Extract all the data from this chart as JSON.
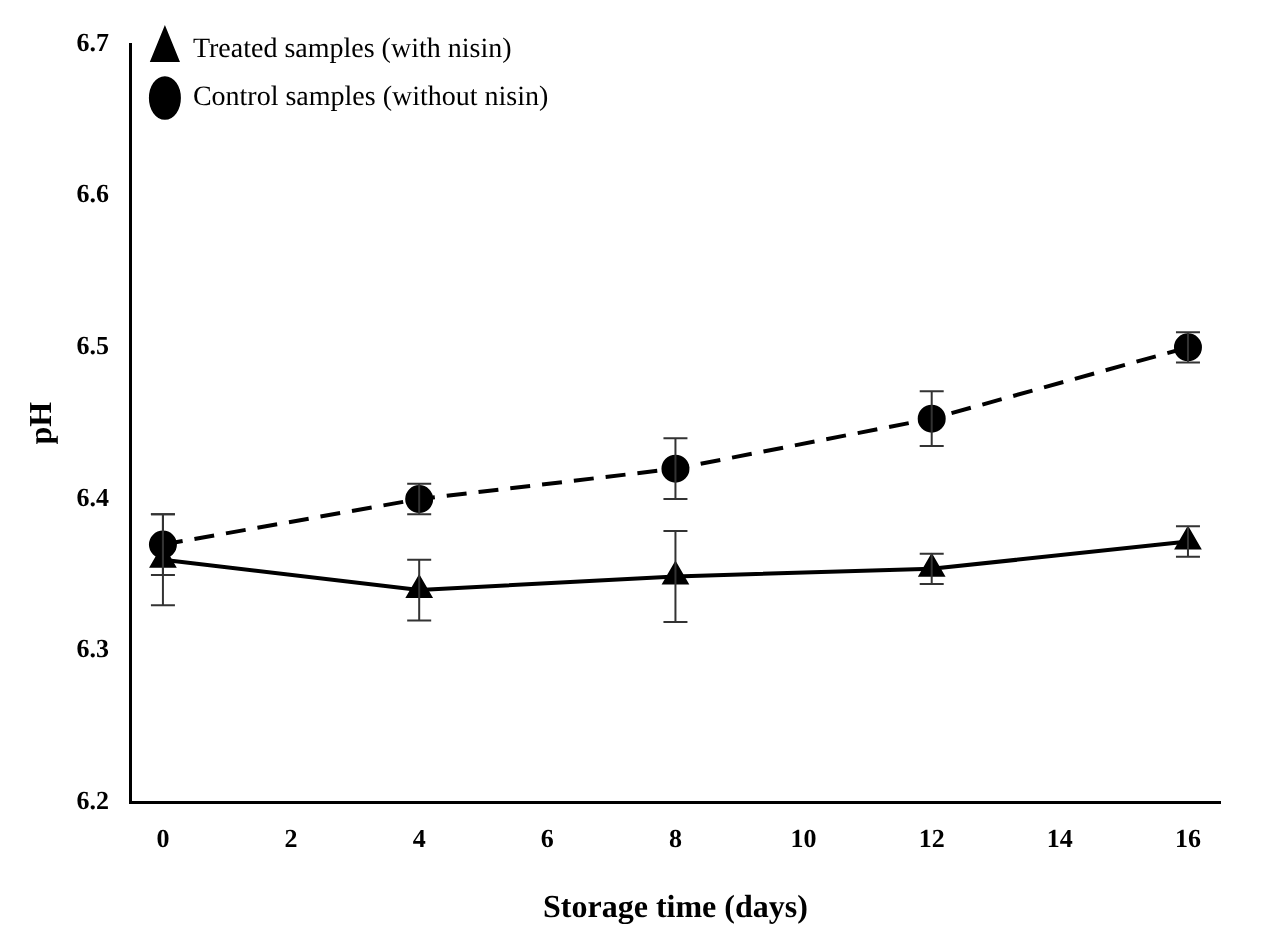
{
  "chart_data": {
    "type": "line",
    "xlabel": "Storage time (days)",
    "ylabel": "pH",
    "x": [
      0,
      4,
      8,
      12,
      16
    ],
    "series": [
      {
        "name": "Treated samples (with nisin)",
        "color": "#000000",
        "marker": "triangle",
        "line_style": "solid",
        "values": [
          6.36,
          6.34,
          6.349,
          6.354,
          6.372
        ],
        "errors": [
          0.03,
          0.02,
          0.03,
          0.01,
          0.01
        ]
      },
      {
        "name": "Control samples (without nisin)",
        "color": "#000000",
        "marker": "circle",
        "line_style": "dashed",
        "values": [
          6.37,
          6.4,
          6.42,
          6.453,
          6.5
        ],
        "errors": [
          0.02,
          0.01,
          0.02,
          0.018,
          0.01
        ]
      }
    ],
    "xlim": [
      -0.5,
      16.5
    ],
    "xticks": [
      0,
      2,
      4,
      6,
      8,
      10,
      12,
      14,
      16
    ],
    "ylim": [
      6.2,
      6.7
    ],
    "yticks": [
      6.2,
      6.3,
      6.4,
      6.5,
      6.6,
      6.7
    ],
    "grid": false,
    "legend": "top left"
  }
}
